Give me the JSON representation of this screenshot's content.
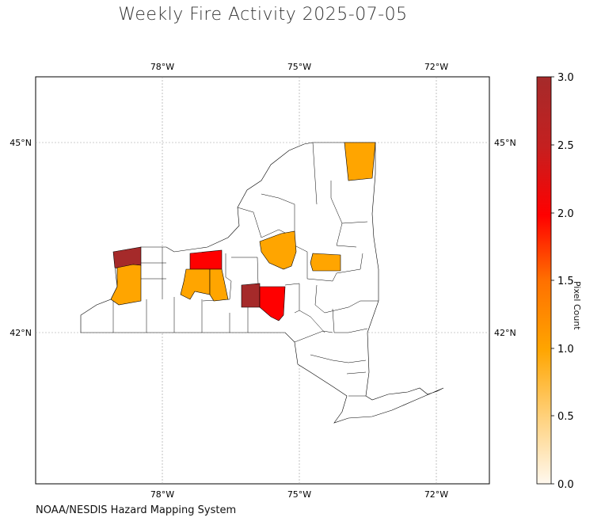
{
  "title": "Weekly Fire Activity 2025-07-05",
  "credit": "NOAA/NESDIS Hazard Mapping System",
  "colorbar": {
    "label": "Pixel Count",
    "ticks": [
      "0.0",
      "0.5",
      "1.0",
      "1.5",
      "2.0",
      "2.5",
      "3.0"
    ],
    "range": [
      0,
      3
    ],
    "colors": [
      "#fff8ee",
      "#ffd27f",
      "#ffa500",
      "#ff7000",
      "#ff0000",
      "#c42020",
      "#a52a2a"
    ]
  },
  "map": {
    "lon_labels_top": [
      "78°W",
      "75°W",
      "72°W"
    ],
    "lon_labels_bottom": [
      "78°W",
      "75°W",
      "72°W"
    ],
    "lat_labels_left": [
      "45°N",
      "42°N"
    ],
    "lat_labels_right": [
      "45°N",
      "42°N"
    ],
    "gridlines": true,
    "county_colors": {
      "count_0": "#ffffff",
      "count_1": "#ffa500",
      "count_2": "#ff0000",
      "count_3": "#a52a2a"
    }
  }
}
